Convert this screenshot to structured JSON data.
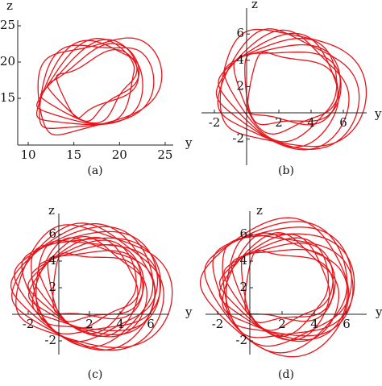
{
  "panels": [
    {
      "caption": "(a)",
      "x_label": "y",
      "y_label": "z",
      "xticks": [
        10,
        15,
        20,
        25
      ],
      "yticks": [
        15,
        20,
        25
      ]
    },
    {
      "caption": "(b)",
      "x_label": "y",
      "y_label": "z",
      "xticks": [
        -2,
        2,
        4,
        6
      ],
      "yticks": [
        -2,
        2,
        4,
        6
      ]
    },
    {
      "caption": "(c)",
      "x_label": "y",
      "y_label": "z",
      "xticks": [
        -2,
        2,
        4,
        6
      ],
      "yticks": [
        -2,
        2,
        4,
        6
      ]
    },
    {
      "caption": "(d)",
      "x_label": "y",
      "y_label": "z",
      "xticks": [
        -2,
        2,
        4,
        6
      ],
      "yticks": [
        -2,
        2,
        4,
        6
      ]
    }
  ]
}
